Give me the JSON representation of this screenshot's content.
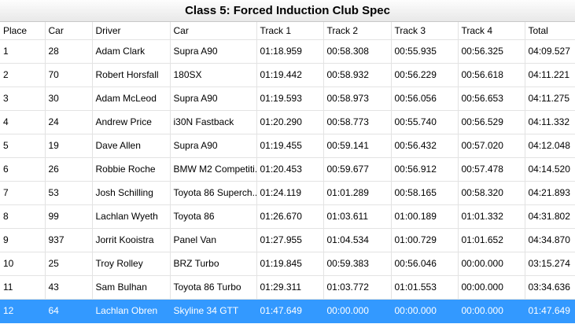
{
  "header": {
    "title": "Class 5: Forced Induction Club Spec"
  },
  "table": {
    "columns": [
      "Place",
      "Car",
      "Driver",
      "Car",
      "Track 1",
      "Track 2",
      "Track 3",
      "Track 4",
      "Total"
    ],
    "rows": [
      [
        "1",
        "28",
        "Adam Clark",
        "Supra A90",
        "01:18.959",
        "00:58.308",
        "00:55.935",
        "00:56.325",
        "04:09.527"
      ],
      [
        "2",
        "70",
        "Robert Horsfall",
        "180SX",
        "01:19.442",
        "00:58.932",
        "00:56.229",
        "00:56.618",
        "04:11.221"
      ],
      [
        "3",
        "30",
        "Adam McLeod",
        "Supra A90",
        "01:19.593",
        "00:58.973",
        "00:56.056",
        "00:56.653",
        "04:11.275"
      ],
      [
        "4",
        "24",
        "Andrew Price",
        "i30N Fastback",
        "01:20.290",
        "00:58.773",
        "00:55.740",
        "00:56.529",
        "04:11.332"
      ],
      [
        "5",
        "19",
        "Dave Allen",
        "Supra A90",
        "01:19.455",
        "00:59.141",
        "00:56.432",
        "00:57.020",
        "04:12.048"
      ],
      [
        "6",
        "26",
        "Robbie Roche",
        "BMW M2 Competiti...",
        "01:20.453",
        "00:59.677",
        "00:56.912",
        "00:57.478",
        "04:14.520"
      ],
      [
        "7",
        "53",
        "Josh Schilling",
        "Toyota 86 Superch...",
        "01:24.119",
        "01:01.289",
        "00:58.165",
        "00:58.320",
        "04:21.893"
      ],
      [
        "8",
        "99",
        "Lachlan Wyeth",
        "Toyota 86",
        "01:26.670",
        "01:03.611",
        "01:00.189",
        "01:01.332",
        "04:31.802"
      ],
      [
        "9",
        "937",
        "Jorrit Kooistra",
        "Panel Van",
        "01:27.955",
        "01:04.534",
        "01:00.729",
        "01:01.652",
        "04:34.870"
      ],
      [
        "10",
        "25",
        "Troy Rolley",
        "BRZ Turbo",
        "01:19.845",
        "00:59.383",
        "00:56.046",
        "00:00.000",
        "03:15.274"
      ],
      [
        "11",
        "43",
        "Sam Bulhan",
        "Toyota 86 Turbo",
        "01:29.311",
        "01:03.772",
        "01:01.553",
        "00:00.000",
        "03:34.636"
      ],
      [
        "12",
        "64",
        "Lachlan Obren",
        "Skyline 34 GTT",
        "01:47.649",
        "00:00.000",
        "00:00.000",
        "00:00.000",
        "01:47.649"
      ]
    ]
  }
}
